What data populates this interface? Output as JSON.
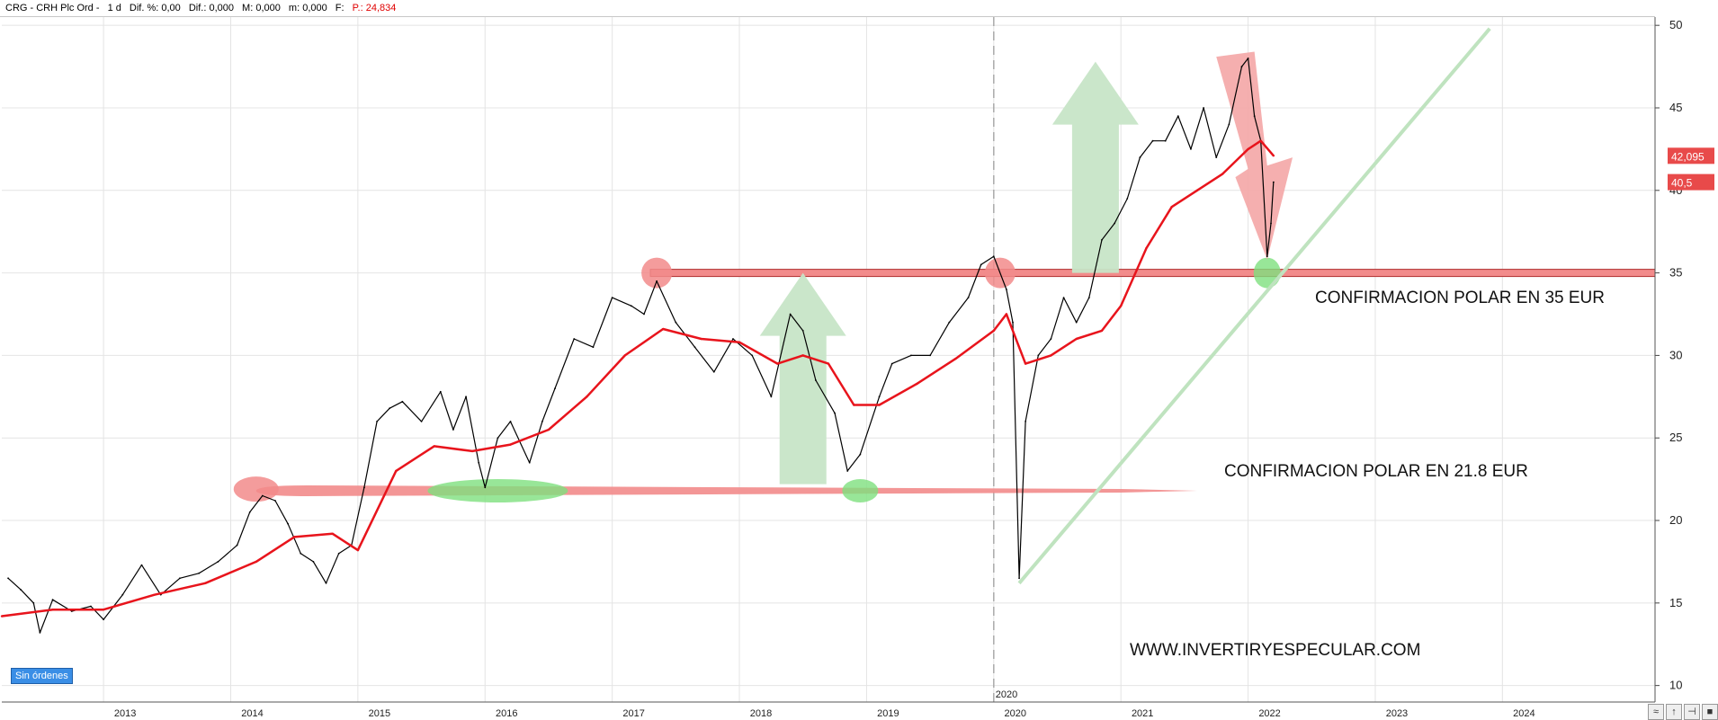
{
  "header": {
    "symbol": "CRG - CRH Plc Ord -",
    "period": "1 d",
    "dif_pct": "Dif. %: 0,00",
    "dif": "Dif.: 0,000",
    "m": "M: 0,000",
    "mm": "m: 0,000",
    "f": "F:",
    "p": "P.: 24,834"
  },
  "status_badge": "Sin órdenes",
  "watermark": "WWW.INVERTIRYESPECULAR.COM",
  "annotations": {
    "polar_35": "CONFIRMACION POLAR EN 35 EUR",
    "polar_218": "CONFIRMACION POLAR EN 21.8 EUR"
  },
  "covid_marker": "2020",
  "price_tags": {
    "ma": "42,095",
    "last": "40,5"
  },
  "colors": {
    "price": "#000000",
    "ma": "#e8141c",
    "support": "#f28b8b",
    "green_zone": "#7ee07e",
    "trendline": "#bfe3bf",
    "arrow_green": "#c7e5c7",
    "arrow_red": "#f4a6a6"
  },
  "chart_data": {
    "type": "line",
    "x_ticks": [
      "2013",
      "2014",
      "2015",
      "2016",
      "2017",
      "2018",
      "2019",
      "2020",
      "2021",
      "2022",
      "2023",
      "2024"
    ],
    "y_ticks": [
      10,
      15,
      20,
      25,
      30,
      35,
      40,
      45,
      50
    ],
    "ylim": [
      9,
      50.5
    ],
    "xlim": [
      2012.2,
      2025.2
    ],
    "series": [
      {
        "role": "price",
        "x": [
          2012.25,
          2012.35,
          2012.45,
          2012.5,
          2012.6,
          2012.75,
          2012.9,
          2013.0,
          2013.15,
          2013.3,
          2013.45,
          2013.6,
          2013.75,
          2013.9,
          2014.05,
          2014.15,
          2014.25,
          2014.35,
          2014.45,
          2014.55,
          2014.65,
          2014.75,
          2014.85,
          2014.95,
          2015.05,
          2015.15,
          2015.25,
          2015.35,
          2015.5,
          2015.65,
          2015.75,
          2015.85,
          2015.95,
          2016.0,
          2016.1,
          2016.2,
          2016.35,
          2016.45,
          2016.55,
          2016.7,
          2016.85,
          2017.0,
          2017.15,
          2017.25,
          2017.35,
          2017.5,
          2017.65,
          2017.8,
          2017.95,
          2018.1,
          2018.25,
          2018.4,
          2018.5,
          2018.6,
          2018.75,
          2018.85,
          2018.95,
          2019.1,
          2019.2,
          2019.35,
          2019.5,
          2019.65,
          2019.8,
          2019.9,
          2020.0,
          2020.1,
          2020.15,
          2020.2,
          2020.25,
          2020.35,
          2020.45,
          2020.55,
          2020.65,
          2020.75,
          2020.85,
          2020.95,
          2021.05,
          2021.15,
          2021.25,
          2021.35,
          2021.45,
          2021.55,
          2021.65,
          2021.75,
          2021.85,
          2021.95,
          2022.0,
          2022.05,
          2022.1,
          2022.15,
          2022.18,
          2022.2
        ],
        "y": [
          16.5,
          15.8,
          15.0,
          13.2,
          15.2,
          14.5,
          14.8,
          14.0,
          15.5,
          17.3,
          15.5,
          16.5,
          16.8,
          17.5,
          18.5,
          20.5,
          21.5,
          21.2,
          19.8,
          18.0,
          17.5,
          16.2,
          18.0,
          18.5,
          22.0,
          26.0,
          26.8,
          27.2,
          26.0,
          27.8,
          25.5,
          27.5,
          23.5,
          22.0,
          25.0,
          26.0,
          23.5,
          26.0,
          28.0,
          31.0,
          30.5,
          33.5,
          33.0,
          32.5,
          34.5,
          32.0,
          30.5,
          29.0,
          31.0,
          30.0,
          27.5,
          32.5,
          31.5,
          28.5,
          26.5,
          23.0,
          24.0,
          27.5,
          29.5,
          30.0,
          30.0,
          32.0,
          33.5,
          35.5,
          36.0,
          34.0,
          32.0,
          16.5,
          26.0,
          30.0,
          31.0,
          33.5,
          32.0,
          33.5,
          37.0,
          38.0,
          39.5,
          42.0,
          43.0,
          43.0,
          44.5,
          42.5,
          45.0,
          42.0,
          44.0,
          47.5,
          48.0,
          44.5,
          43.0,
          36.0,
          38.0,
          40.5
        ]
      },
      {
        "role": "moving_average",
        "x": [
          2012.2,
          2012.6,
          2013.0,
          2013.4,
          2013.8,
          2014.2,
          2014.5,
          2014.8,
          2015.0,
          2015.3,
          2015.6,
          2015.9,
          2016.2,
          2016.5,
          2016.8,
          2017.1,
          2017.4,
          2017.7,
          2018.0,
          2018.3,
          2018.5,
          2018.7,
          2018.9,
          2019.1,
          2019.4,
          2019.7,
          2020.0,
          2020.1,
          2020.25,
          2020.45,
          2020.65,
          2020.85,
          2021.0,
          2021.2,
          2021.4,
          2021.6,
          2021.8,
          2022.0,
          2022.1,
          2022.2
        ],
        "y": [
          14.2,
          14.6,
          14.6,
          15.5,
          16.2,
          17.5,
          19.0,
          19.2,
          18.2,
          23.0,
          24.5,
          24.2,
          24.6,
          25.5,
          27.5,
          30.0,
          31.6,
          31.0,
          30.8,
          29.5,
          30.0,
          29.5,
          27.0,
          27.0,
          28.3,
          29.8,
          31.5,
          32.5,
          29.5,
          30.0,
          31.0,
          31.5,
          33.0,
          36.5,
          39.0,
          40.0,
          41.0,
          42.5,
          43.0,
          42.1
        ]
      }
    ]
  }
}
